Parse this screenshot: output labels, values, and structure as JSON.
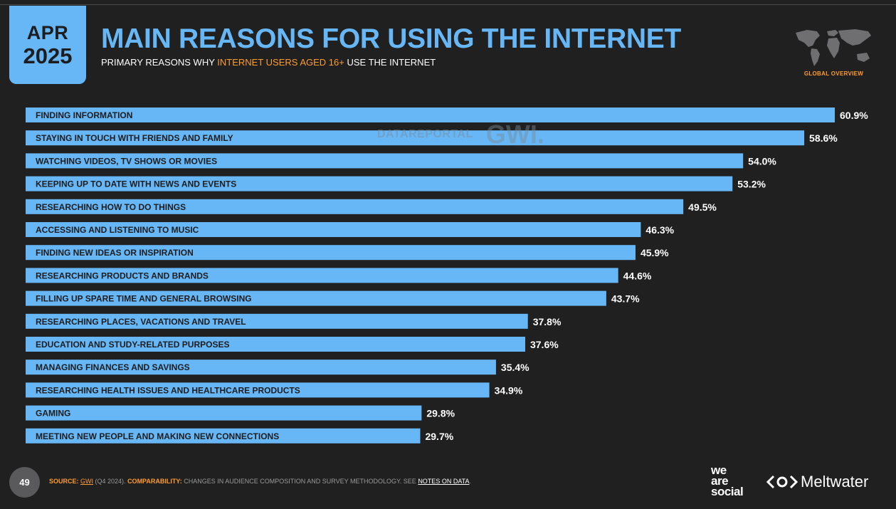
{
  "header": {
    "month": "APR",
    "year": "2025",
    "title": "MAIN REASONS FOR USING THE INTERNET",
    "subtitle_before": "PRIMARY REASONS WHY ",
    "subtitle_highlight": "INTERNET USERS AGED 16+",
    "subtitle_after": " USE THE INTERNET",
    "badge": "GLOBAL OVERVIEW"
  },
  "watermark": {
    "datareportal": "DATAREPORTAL",
    "gwi": "GWI."
  },
  "chart_data": {
    "type": "bar",
    "orientation": "horizontal",
    "categories": [
      "FINDING INFORMATION",
      "STAYING IN TOUCH WITH FRIENDS AND FAMILY",
      "WATCHING VIDEOS, TV SHOWS OR MOVIES",
      "KEEPING UP TO DATE WITH NEWS AND EVENTS",
      "RESEARCHING HOW TO DO THINGS",
      "ACCESSING AND LISTENING TO MUSIC",
      "FINDING NEW IDEAS OR INSPIRATION",
      "RESEARCHING PRODUCTS AND BRANDS",
      "FILLING UP SPARE TIME AND GENERAL BROWSING",
      "RESEARCHING PLACES, VACATIONS AND TRAVEL",
      "EDUCATION AND STUDY-RELATED PURPOSES",
      "MANAGING FINANCES AND SAVINGS",
      "RESEARCHING HEALTH ISSUES AND HEALTHCARE PRODUCTS",
      "GAMING",
      "MEETING NEW PEOPLE AND MAKING NEW CONNECTIONS"
    ],
    "values": [
      60.9,
      58.6,
      54.0,
      53.2,
      49.5,
      46.3,
      45.9,
      44.6,
      43.7,
      37.8,
      37.6,
      35.4,
      34.9,
      29.8,
      29.7
    ],
    "value_labels": [
      "60.9%",
      "58.6%",
      "54.0%",
      "53.2%",
      "49.5%",
      "46.3%",
      "45.9%",
      "44.6%",
      "43.7%",
      "37.8%",
      "37.6%",
      "35.4%",
      "34.9%",
      "29.8%",
      "29.7%"
    ],
    "unit": "%",
    "grid": false,
    "bar_color": "#67b7f6",
    "label_color": "#1d1d1f"
  },
  "footer": {
    "page_number": "49",
    "source_label": "SOURCE:",
    "source_link": "GWI",
    "source_period": " (Q4 2024). ",
    "comparability_label": "COMPARABILITY:",
    "comparability_text": " CHANGES IN AUDIENCE COMPOSITION AND SURVEY METHODOLOGY. SEE ",
    "notes_link": "NOTES ON DATA",
    "end": ".",
    "logo_we": "we",
    "logo_are": "are",
    "logo_social": "social",
    "logo_meltwater": "Meltwater"
  },
  "colors": {
    "background": "#202021",
    "accent_blue": "#67b7f6",
    "accent_orange": "#ff9d2c"
  }
}
